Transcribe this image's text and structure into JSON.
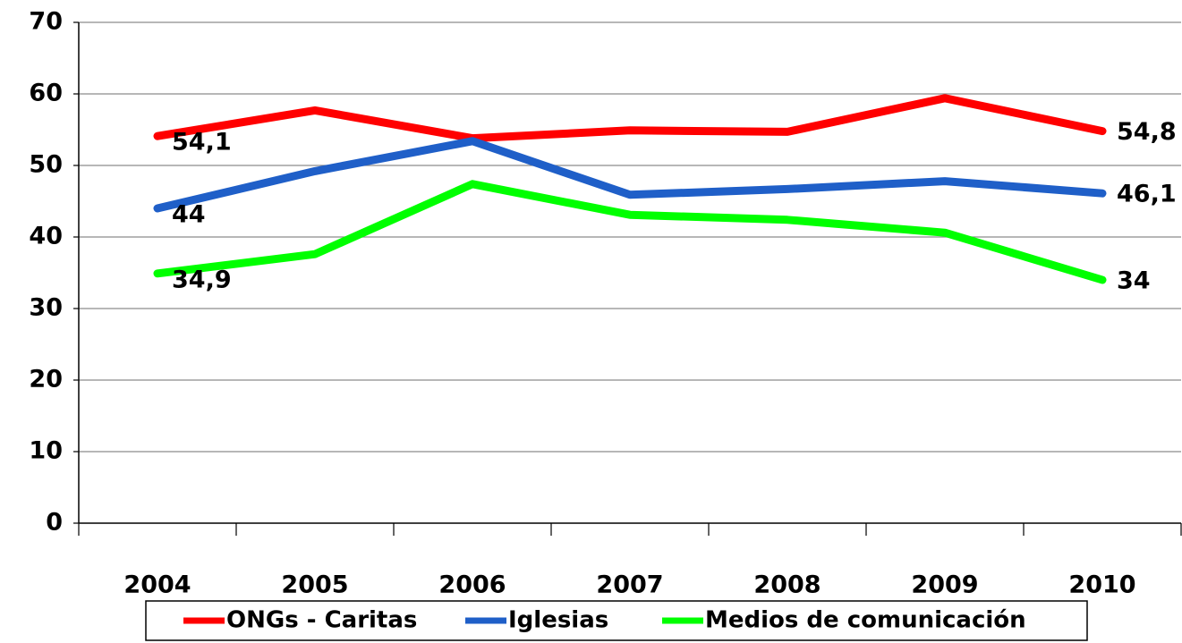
{
  "chart_data": {
    "type": "line",
    "categories": [
      "2004",
      "2005",
      "2006",
      "2007",
      "2008",
      "2009",
      "2010"
    ],
    "series": [
      {
        "name": "ONGs - Caritas",
        "color": "#ff0000",
        "values": [
          54.1,
          57.7,
          53.8,
          54.9,
          54.7,
          59.4,
          54.8
        ],
        "value_labels": [
          "54,1",
          null,
          null,
          null,
          null,
          null,
          "54,8"
        ]
      },
      {
        "name": "Iglesias",
        "color": "#1f5fc8",
        "values": [
          44,
          49.2,
          53.4,
          45.9,
          46.7,
          47.8,
          46.1
        ],
        "value_labels": [
          "44",
          null,
          null,
          null,
          null,
          null,
          "46,1"
        ]
      },
      {
        "name": "Medios de comunicación",
        "color": "#00ff00",
        "values": [
          34.9,
          37.6,
          47.4,
          43.1,
          42.4,
          40.6,
          34
        ],
        "value_labels": [
          "34,9",
          null,
          null,
          null,
          null,
          null,
          "34"
        ]
      }
    ],
    "ylim": [
      0,
      70
    ],
    "yticks": [
      0,
      10,
      20,
      30,
      40,
      50,
      60,
      70
    ],
    "grid": true,
    "legend": "bottom"
  }
}
